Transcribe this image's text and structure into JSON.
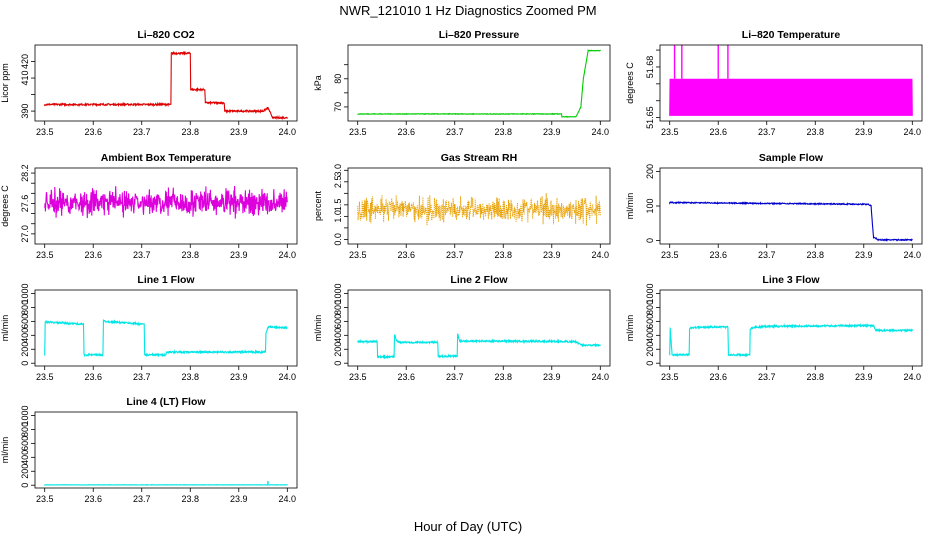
{
  "figure": {
    "title": "NWR_121010  1 Hz Diagnostics Zoomed PM",
    "xlabel": "Hour of Day (UTC)"
  },
  "chart_data": [
    {
      "type": "line",
      "title": "Li–820 CO2",
      "ylabel": "Licor ppm",
      "color": "#dd0000",
      "xlim": [
        23.48,
        24.02
      ],
      "ylim": [
        384,
        430
      ],
      "xticks": [
        23.5,
        23.6,
        23.7,
        23.8,
        23.9,
        24.0
      ],
      "yticks": [
        390,
        400,
        410,
        420
      ],
      "ytick_labels": [
        "390",
        "",
        "410",
        "420"
      ],
      "noise": 0.5,
      "spikes": [],
      "series": [
        {
          "x": [
            23.5,
            23.76,
            23.761,
            23.8,
            23.801,
            23.83,
            23.831,
            23.87,
            23.871,
            23.95,
            23.96,
            23.965,
            23.97,
            24.0
          ],
          "y": [
            394,
            394,
            425,
            425,
            403,
            403,
            395,
            395,
            390,
            390,
            392,
            389,
            386,
            386
          ]
        }
      ]
    },
    {
      "type": "line",
      "title": "Li–820 Pressure",
      "ylabel": "kPa",
      "color": "#00cc00",
      "xlim": [
        23.48,
        24.02
      ],
      "ylim": [
        65,
        92
      ],
      "xticks": [
        23.5,
        23.6,
        23.7,
        23.8,
        23.9,
        24.0
      ],
      "yticks": [
        70,
        75,
        80,
        85
      ],
      "ytick_labels": [
        "70",
        "",
        "80",
        ""
      ],
      "noise": 0.1,
      "spikes": [],
      "series": [
        {
          "x": [
            23.5,
            23.92,
            23.921,
            23.95,
            23.96,
            23.965,
            23.975,
            24.0
          ],
          "y": [
            67.5,
            67.5,
            66.5,
            66.5,
            70,
            80,
            90,
            90
          ]
        }
      ]
    },
    {
      "type": "line",
      "title": "Li–820 Temperature",
      "ylabel": "degrees C",
      "color": "#ff00ff",
      "xlim": [
        23.48,
        24.02
      ],
      "ylim": [
        51.648,
        51.693
      ],
      "xticks": [
        23.5,
        23.6,
        23.7,
        23.8,
        23.9,
        24.0
      ],
      "yticks": [
        51.65,
        51.66,
        51.67,
        51.68,
        51.69
      ],
      "ytick_labels": [
        "51.65",
        "",
        "",
        "51.68",
        ""
      ],
      "band": [
        51.651,
        51.673
      ],
      "spikes": [
        [
          23.51,
          51.693
        ],
        [
          23.525,
          51.693
        ],
        [
          23.6,
          51.693
        ],
        [
          23.62,
          51.693
        ]
      ]
    },
    {
      "type": "line",
      "title": "Ambient Box Temperature",
      "ylabel": "degrees C",
      "color": "#dd00dd",
      "xlim": [
        23.48,
        24.02
      ],
      "ylim": [
        26.8,
        28.3
      ],
      "xticks": [
        23.5,
        23.6,
        23.7,
        23.8,
        23.9,
        24.0
      ],
      "yticks": [
        27.0,
        27.2,
        27.4,
        27.6,
        27.8,
        28.0,
        28.2
      ],
      "ytick_labels": [
        "27.0",
        "",
        "",
        "27.6",
        "",
        "",
        "28.2"
      ],
      "center": 27.62,
      "noise": 0.36,
      "spikes": []
    },
    {
      "type": "line",
      "title": "Gas Stream RH",
      "ylabel": "percent",
      "color": "#e8a000",
      "xlim": [
        23.48,
        24.02
      ],
      "ylim": [
        -0.2,
        3.1
      ],
      "xticks": [
        23.5,
        23.6,
        23.7,
        23.8,
        23.9,
        24.0
      ],
      "yticks": [
        0.0,
        0.5,
        1.0,
        1.5,
        2.0,
        2.5,
        3.0
      ],
      "ytick_labels": [
        "0.0",
        "",
        "1.0",
        "1.5",
        "",
        "2.5",
        "3.0"
      ],
      "center": 1.3,
      "noise": 0.8,
      "spikes": [],
      "dots": true
    },
    {
      "type": "line",
      "title": "Sample Flow",
      "ylabel": "ml/min",
      "color": "#0000cc",
      "xlim": [
        23.48,
        24.02
      ],
      "ylim": [
        -10,
        210
      ],
      "xticks": [
        23.5,
        23.6,
        23.7,
        23.8,
        23.9,
        24.0
      ],
      "yticks": [
        0,
        100,
        200
      ],
      "ytick_labels": [
        "0",
        "100",
        "200"
      ],
      "noise": 1.5,
      "spikes": [],
      "series": [
        {
          "x": [
            23.5,
            23.91,
            23.915,
            23.92,
            23.93,
            24.0
          ],
          "y": [
            110,
            105,
            100,
            10,
            2,
            2
          ]
        }
      ]
    },
    {
      "type": "line",
      "title": "Line 1 Flow",
      "ylabel": "ml/min",
      "color": "#00e5e5",
      "xlim": [
        23.48,
        24.02
      ],
      "ylim": [
        -40,
        1050
      ],
      "xticks": [
        23.5,
        23.6,
        23.7,
        23.8,
        23.9,
        24.0
      ],
      "yticks": [
        0,
        200,
        400,
        600,
        800,
        1000
      ],
      "ytick_labels": [
        "0",
        "200",
        "400",
        "600",
        "800",
        "1000"
      ],
      "noise": 12,
      "spikes": [],
      "series": [
        {
          "x": [
            23.5,
            23.501,
            23.505,
            23.58,
            23.581,
            23.62,
            23.621,
            23.625,
            23.705,
            23.706,
            23.75,
            23.751,
            23.955,
            23.956,
            23.96,
            24.0
          ],
          "y": [
            120,
            600,
            590,
            560,
            120,
            120,
            610,
            600,
            560,
            120,
            120,
            160,
            160,
            420,
            520,
            510
          ]
        }
      ]
    },
    {
      "type": "line",
      "title": "Line 2 Flow",
      "ylabel": "ml/min",
      "color": "#00e5e5",
      "xlim": [
        23.48,
        24.02
      ],
      "ylim": [
        -40,
        1050
      ],
      "xticks": [
        23.5,
        23.6,
        23.7,
        23.8,
        23.9,
        24.0
      ],
      "yticks": [
        0,
        200,
        400,
        600,
        800,
        1000
      ],
      "ytick_labels": [
        "0",
        "200",
        "400",
        "600",
        "800",
        "1000"
      ],
      "noise": 12,
      "spikes": [],
      "series": [
        {
          "x": [
            23.5,
            23.54,
            23.541,
            23.575,
            23.576,
            23.58,
            23.585,
            23.665,
            23.666,
            23.705,
            23.706,
            23.71,
            23.95,
            23.96,
            24.0
          ],
          "y": [
            310,
            310,
            90,
            90,
            420,
            320,
            300,
            300,
            100,
            100,
            420,
            320,
            310,
            260,
            260
          ]
        }
      ]
    },
    {
      "type": "line",
      "title": "Line 3 Flow",
      "ylabel": "ml/min",
      "color": "#00e5e5",
      "xlim": [
        23.48,
        24.02
      ],
      "ylim": [
        -40,
        1050
      ],
      "xticks": [
        23.5,
        23.6,
        23.7,
        23.8,
        23.9,
        24.0
      ],
      "yticks": [
        0,
        200,
        400,
        600,
        800,
        1000
      ],
      "ytick_labels": [
        "0",
        "200",
        "400",
        "600",
        "800",
        "1000"
      ],
      "noise": 12,
      "spikes": [],
      "series": [
        {
          "x": [
            23.5,
            23.501,
            23.505,
            23.54,
            23.541,
            23.545,
            23.58,
            23.62,
            23.621,
            23.665,
            23.666,
            23.67,
            23.7,
            23.92,
            23.925,
            24.0
          ],
          "y": [
            120,
            500,
            120,
            120,
            490,
            510,
            520,
            520,
            120,
            120,
            490,
            510,
            530,
            540,
            470,
            470
          ]
        }
      ]
    },
    {
      "type": "line",
      "title": "Line 4 (LT) Flow",
      "ylabel": "ml/min",
      "color": "#00e5e5",
      "xlim": [
        23.48,
        24.02
      ],
      "ylim": [
        -40,
        1050
      ],
      "xticks": [
        23.5,
        23.6,
        23.7,
        23.8,
        23.9,
        24.0
      ],
      "yticks": [
        0,
        200,
        400,
        600,
        800,
        1000
      ],
      "ytick_labels": [
        "0",
        "200",
        "400",
        "600",
        "800",
        "1000"
      ],
      "noise": 2,
      "spikes": [
        [
          23.96,
          60
        ]
      ],
      "series": [
        {
          "x": [
            23.5,
            24.0
          ],
          "y": [
            5,
            5
          ]
        }
      ]
    }
  ]
}
